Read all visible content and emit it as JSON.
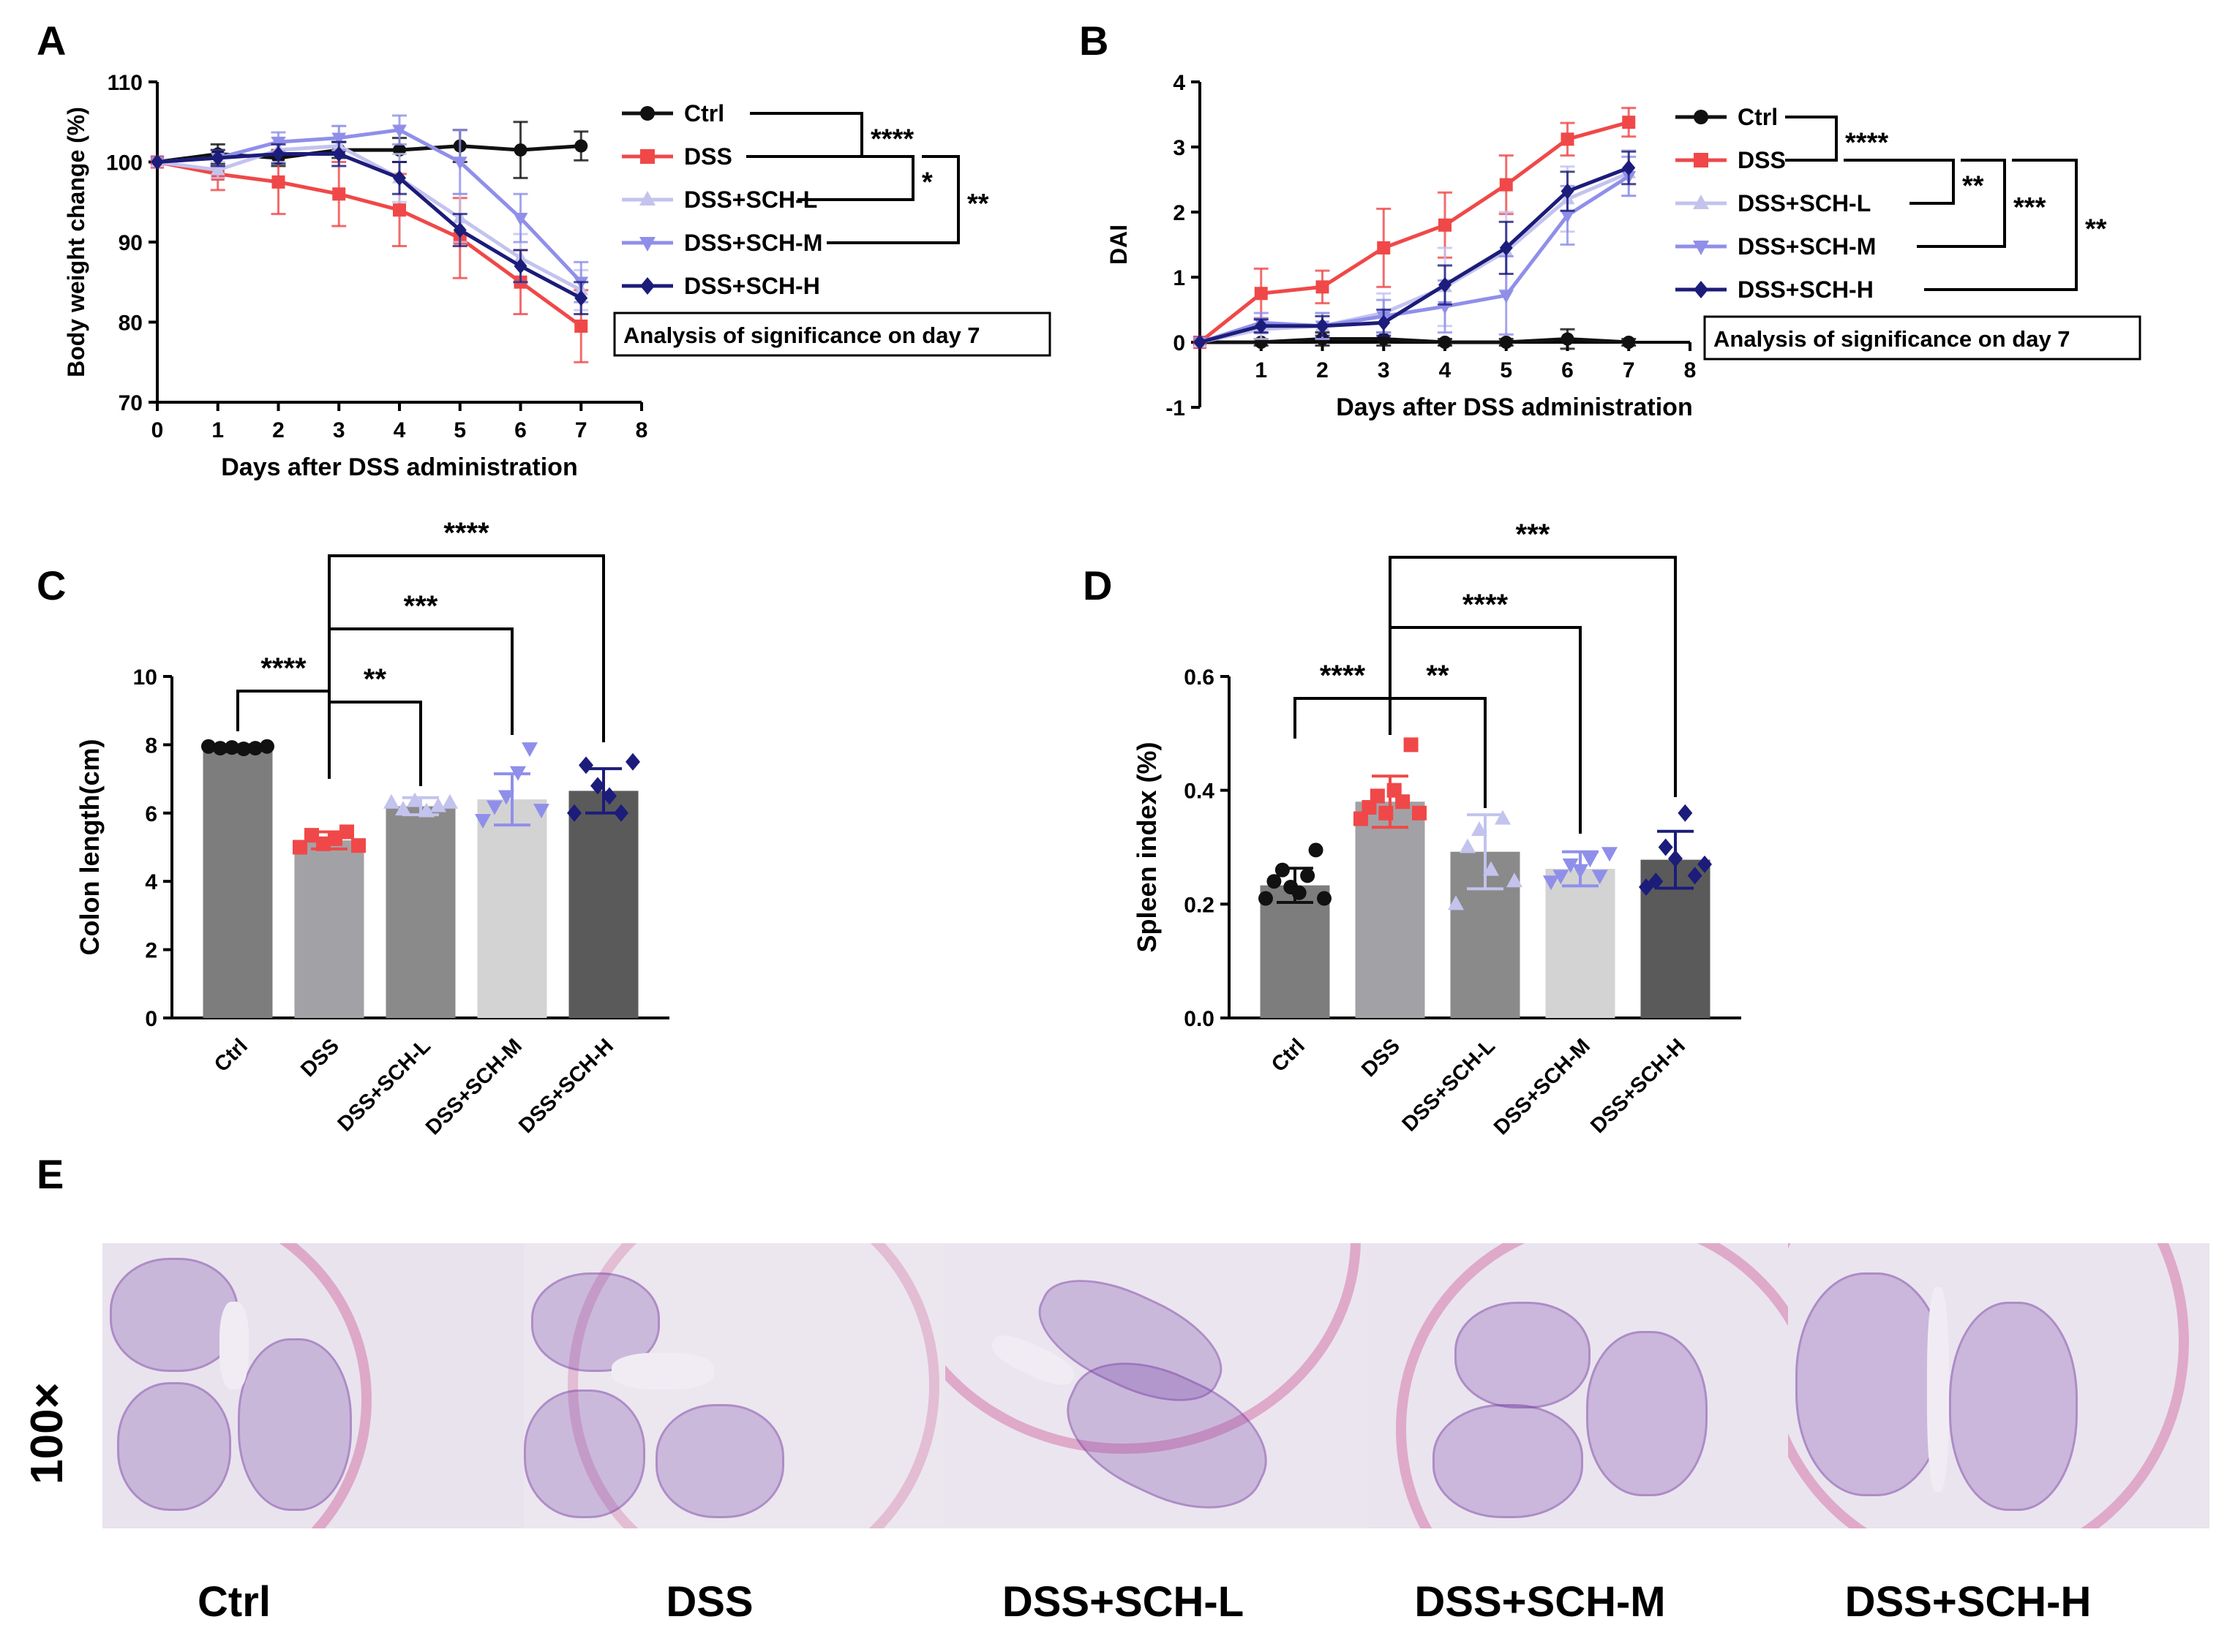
{
  "colors": {
    "ctrl": "#111111",
    "dss": "#f04848",
    "sch_l": "#c3c3ee",
    "sch_m": "#8f8fea",
    "sch_h": "#1c1c7a",
    "bar_ctrl": "#7d7d7d",
    "bar_dss": "#a2a2a6",
    "bar_l": "#8a8a8a",
    "bar_m": "#d3d3d3",
    "bar_h": "#5a5a5a"
  },
  "panels": {
    "A": "A",
    "B": "B",
    "C": "C",
    "D": "D",
    "E": "E"
  },
  "chart_data": [
    {
      "id": "A",
      "type": "line",
      "ylabel": "Body weight change (%)",
      "xlabel": "Days after DSS administration",
      "xlim": [
        0,
        8
      ],
      "ylim": [
        70,
        110
      ],
      "xticks": [
        0,
        1,
        2,
        3,
        4,
        5,
        6,
        7,
        8
      ],
      "yticks": [
        70,
        80,
        90,
        100,
        110
      ],
      "x": [
        0,
        1,
        2,
        3,
        4,
        5,
        6,
        7
      ],
      "series": [
        {
          "name": "Ctrl",
          "color": "#111111",
          "marker": "circle",
          "values": [
            100,
            101,
            100.5,
            101.5,
            101.5,
            102,
            101.5,
            102
          ],
          "errors": [
            0,
            1.2,
            1,
            1,
            1.5,
            2,
            3.5,
            1.8
          ]
        },
        {
          "name": "DSS",
          "color": "#f04848",
          "marker": "square",
          "values": [
            100,
            98.5,
            97.5,
            96,
            94,
            90.5,
            85,
            79.5
          ],
          "errors": [
            0,
            2,
            4,
            4,
            4.5,
            5,
            4,
            4.5
          ]
        },
        {
          "name": "DSS+SCH-L",
          "color": "#c3c3ee",
          "marker": "triangle-up",
          "values": [
            100,
            99,
            101.5,
            102,
            98,
            93,
            88,
            84
          ],
          "errors": [
            0,
            1,
            1.5,
            2.5,
            3,
            3,
            3,
            2.5
          ]
        },
        {
          "name": "DSS+SCH-M",
          "color": "#8f8fea",
          "marker": "triangle-down",
          "values": [
            100,
            100.5,
            102.5,
            103,
            104,
            100,
            93,
            85
          ],
          "errors": [
            0,
            1,
            1.2,
            1.5,
            1.8,
            4,
            3,
            2.5
          ]
        },
        {
          "name": "DSS+SCH-H",
          "color": "#1c1c7a",
          "marker": "diamond",
          "values": [
            100,
            100.5,
            101,
            101,
            98,
            91.5,
            87,
            83
          ],
          "errors": [
            0,
            1,
            1.2,
            1.5,
            2,
            2,
            2,
            2
          ]
        }
      ],
      "significance": [
        {
          "label": "****",
          "between": [
            "Ctrl",
            "DSS"
          ]
        },
        {
          "label": "*",
          "between": [
            "DSS",
            "DSS+SCH-L"
          ]
        },
        {
          "label": "**",
          "between": [
            "DSS",
            "DSS+SCH-M"
          ]
        }
      ],
      "note": "Analysis of significance on day 7"
    },
    {
      "id": "B",
      "type": "line",
      "ylabel": "DAI",
      "xlabel": "Days after DSS administration",
      "xlim": [
        0,
        8
      ],
      "ylim": [
        -1,
        4
      ],
      "xticks": [
        1,
        2,
        3,
        4,
        5,
        6,
        7,
        8
      ],
      "yticks": [
        -1,
        0,
        1,
        2,
        3,
        4
      ],
      "x": [
        0,
        1,
        2,
        3,
        4,
        5,
        6,
        7
      ],
      "series": [
        {
          "name": "Ctrl",
          "color": "#111111",
          "marker": "circle",
          "values": [
            0,
            0,
            0.05,
            0.05,
            0,
            0,
            0.05,
            0
          ],
          "errors": [
            0,
            0.05,
            0.1,
            0.1,
            0.05,
            0.05,
            0.15,
            0.05
          ]
        },
        {
          "name": "DSS",
          "color": "#f04848",
          "marker": "square",
          "values": [
            0,
            0.75,
            0.85,
            1.45,
            1.8,
            2.42,
            3.12,
            3.38
          ],
          "errors": [
            0,
            0.38,
            0.25,
            0.6,
            0.5,
            0.45,
            0.25,
            0.22
          ]
        },
        {
          "name": "DSS+SCH-L",
          "color": "#c3c3ee",
          "marker": "triangle-up",
          "values": [
            0,
            0.2,
            0.25,
            0.45,
            0.85,
            1.4,
            2.2,
            2.6
          ],
          "errors": [
            0,
            0.15,
            0.2,
            0.3,
            0.6,
            0.6,
            0.5,
            0.35
          ]
        },
        {
          "name": "DSS+SCH-M",
          "color": "#8f8fea",
          "marker": "triangle-down",
          "values": [
            0,
            0.3,
            0.25,
            0.4,
            0.55,
            0.72,
            1.95,
            2.55
          ],
          "errors": [
            0,
            0.15,
            0.2,
            0.25,
            0.4,
            0.6,
            0.45,
            0.3
          ]
        },
        {
          "name": "DSS+SCH-H",
          "color": "#1c1c7a",
          "marker": "diamond",
          "values": [
            0,
            0.25,
            0.25,
            0.3,
            0.88,
            1.45,
            2.32,
            2.68
          ],
          "errors": [
            0,
            0.1,
            0.15,
            0.2,
            0.3,
            0.4,
            0.3,
            0.25
          ]
        }
      ],
      "significance": [
        {
          "label": "****",
          "between": [
            "Ctrl",
            "DSS"
          ]
        },
        {
          "label": "**",
          "between": [
            "DSS",
            "DSS+SCH-L"
          ]
        },
        {
          "label": "***",
          "between": [
            "DSS",
            "DSS+SCH-M"
          ]
        },
        {
          "label": "**",
          "between": [
            "DSS",
            "DSS+SCH-H"
          ]
        }
      ],
      "note": "Analysis of significance on day 7"
    },
    {
      "id": "C",
      "type": "bar",
      "ylabel": "Colon length(cm)",
      "ylim": [
        0,
        10
      ],
      "yticks": [
        0,
        2,
        4,
        6,
        8,
        10
      ],
      "categories": [
        "Ctrl",
        "DSS",
        "DSS+SCH-L",
        "DSS+SCH-M",
        "DSS+SCH-H"
      ],
      "values": [
        7.9,
        5.2,
        6.2,
        6.4,
        6.65
      ],
      "errors": [
        0.1,
        0.25,
        0.25,
        0.75,
        0.65
      ],
      "bar_colors": [
        "#7d7d7d",
        "#a2a2a6",
        "#8a8a8a",
        "#d3d3d3",
        "#5a5a5a"
      ],
      "point_colors": [
        "#111111",
        "#f04848",
        "#c3c3ee",
        "#8f8fea",
        "#1c1c7a"
      ],
      "points": [
        [
          7.95,
          7.9,
          7.92,
          7.88,
          7.9,
          7.95
        ],
        [
          5.0,
          5.35,
          5.1,
          5.25,
          5.45,
          5.05
        ],
        [
          6.3,
          6.1,
          6.35,
          6.05,
          6.2,
          6.3
        ],
        [
          5.8,
          6.2,
          6.5,
          7.2,
          7.9,
          6.1
        ],
        [
          6.0,
          7.4,
          6.8,
          6.5,
          6.0,
          7.5
        ]
      ],
      "significance": [
        {
          "label": "****",
          "from": "Ctrl",
          "to": "DSS"
        },
        {
          "label": "**",
          "from": "DSS",
          "to": "DSS+SCH-L"
        },
        {
          "label": "***",
          "from": "DSS",
          "to": "DSS+SCH-M"
        },
        {
          "label": "****",
          "from": "DSS",
          "to": "DSS+SCH-H"
        }
      ]
    },
    {
      "id": "D",
      "type": "bar",
      "ylabel": "Spleen index (%)",
      "ylim": [
        0,
        0.6
      ],
      "yticks": [
        "0.0",
        "0.2",
        "0.4",
        "0.6"
      ],
      "categories": [
        "Ctrl",
        "DSS",
        "DSS+SCH-L",
        "DSS+SCH-M",
        "DSS+SCH-H"
      ],
      "values": [
        0.233,
        0.38,
        0.292,
        0.262,
        0.278
      ],
      "errors": [
        0.03,
        0.045,
        0.065,
        0.03,
        0.05
      ],
      "bar_colors": [
        "#7d7d7d",
        "#a2a2a6",
        "#8a8a8a",
        "#d3d3d3",
        "#5a5a5a"
      ],
      "point_colors": [
        "#111111",
        "#f04848",
        "#c3c3ee",
        "#8f8fea",
        "#1c1c7a"
      ],
      "points": [
        [
          0.21,
          0.24,
          0.26,
          0.23,
          0.22,
          0.25,
          0.295,
          0.21
        ],
        [
          0.35,
          0.37,
          0.39,
          0.36,
          0.4,
          0.38,
          0.48,
          0.36
        ],
        [
          0.2,
          0.3,
          0.33,
          0.26,
          0.35,
          0.24
        ],
        [
          0.24,
          0.25,
          0.27,
          0.26,
          0.28,
          0.25,
          0.29
        ],
        [
          0.23,
          0.24,
          0.3,
          0.28,
          0.36,
          0.25,
          0.27
        ]
      ],
      "significance": [
        {
          "label": "****",
          "from": "Ctrl",
          "to": "DSS"
        },
        {
          "label": "**",
          "from": "DSS",
          "to": "DSS+SCH-L"
        },
        {
          "label": "****",
          "from": "DSS",
          "to": "DSS+SCH-M"
        },
        {
          "label": "***",
          "from": "DSS",
          "to": "DSS+SCH-H"
        }
      ]
    }
  ],
  "histology": {
    "magnification": "100×",
    "captions": [
      "Ctrl",
      "DSS",
      "DSS+SCH-L",
      "DSS+SCH-M",
      "DSS+SCH-H"
    ]
  }
}
